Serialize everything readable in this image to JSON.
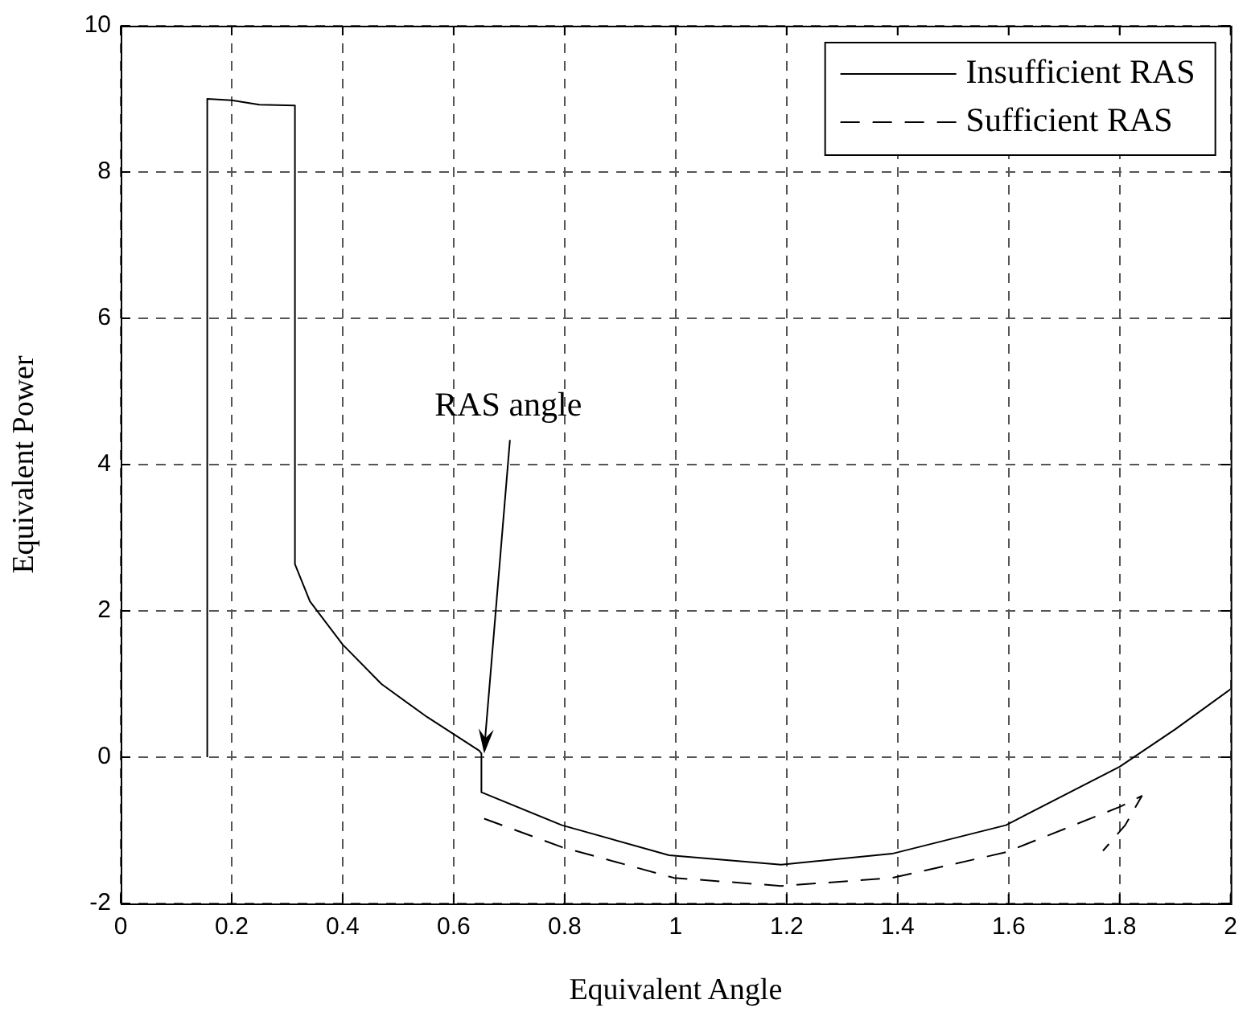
{
  "chart_data": {
    "type": "line",
    "xlabel": "Equivalent Angle",
    "ylabel": "Equivalent Power",
    "xlim": [
      0,
      2
    ],
    "xticks": [
      0,
      0.2,
      0.4,
      0.6,
      0.8,
      1,
      1.2,
      1.4,
      1.6,
      1.8,
      2
    ],
    "ylim": [
      -2,
      10
    ],
    "yticks": [
      -2,
      0,
      2,
      4,
      6,
      8,
      10
    ],
    "grid": true,
    "legend": "top right",
    "marker": "none",
    "annotations": [
      {
        "text": "RAS angle",
        "x": 0.655,
        "y": 0.05
      }
    ],
    "series": [
      {
        "name": "Insufficient RAS",
        "color": "#000000",
        "line_style": "solid",
        "x": [
          0.156,
          0.156,
          0.2,
          0.25,
          0.314,
          0.314,
          0.341,
          0.4,
          0.47,
          0.552,
          0.646,
          0.65,
          0.65,
          0.795,
          0.988,
          1.19,
          1.39,
          1.595,
          1.8,
          1.9,
          2
        ],
        "values": [
          0,
          9.0,
          8.98,
          8.92,
          8.91,
          2.64,
          2.13,
          1.54,
          1.0,
          0.55,
          0.09,
          0.05,
          -0.48,
          -0.93,
          -1.34,
          -1.47,
          -1.32,
          -0.93,
          -0.13,
          0.38,
          0.93
        ]
      },
      {
        "name": "Sufficient RAS",
        "color": "#000000",
        "line_style": "dashed",
        "x": [
          0.655,
          0.795,
          0.997,
          1.19,
          1.39,
          1.595,
          1.8,
          1.84,
          1.81,
          1.77
        ],
        "values": [
          -0.84,
          -1.23,
          -1.65,
          -1.76,
          -1.65,
          -1.3,
          -0.68,
          -0.53,
          -0.93,
          -1.28
        ]
      }
    ]
  }
}
